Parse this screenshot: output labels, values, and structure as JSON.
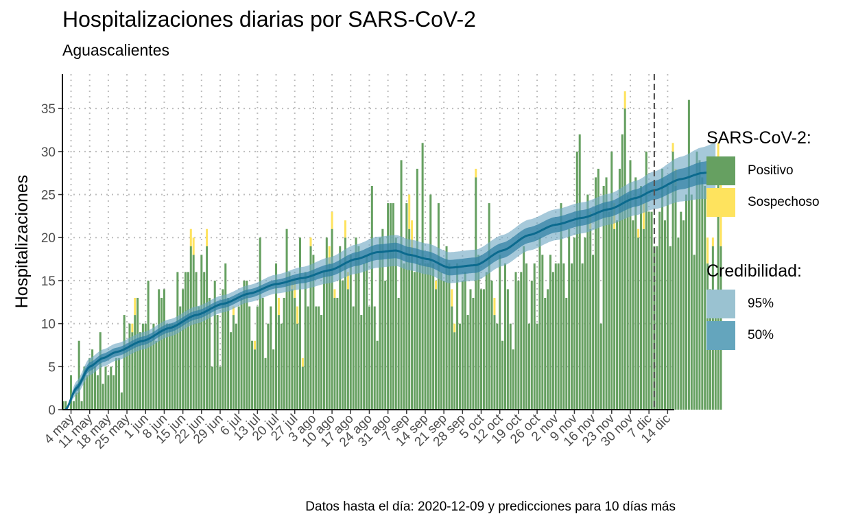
{
  "title": "Hospitalizaciones diarias por SARS-CoV-2",
  "subtitle": "Aguascalientes",
  "caption": "Datos hasta el día: 2020-12-09 y predicciones para 10 días más",
  "legend_sars": {
    "title": "SARS-CoV-2:",
    "items": [
      {
        "label": "Positivo",
        "color": "#66A061"
      },
      {
        "label": "Sospechoso",
        "color": "#FEE35E"
      }
    ]
  },
  "legend_cred": {
    "title": "Credibilidad:",
    "items": [
      {
        "label": "95%",
        "color": "#9AC2D1"
      },
      {
        "label": "50%",
        "color": "#64A5BD"
      }
    ]
  },
  "chart_data": {
    "type": "bar",
    "ylabel": "Hospitalizaciones",
    "xlabel": "",
    "x_start": "2020-05-01",
    "ylim": [
      0,
      39
    ],
    "y_ticks": [
      0,
      5,
      10,
      15,
      20,
      25,
      30,
      35
    ],
    "x_tick_labels": [
      "4 may",
      "11 may",
      "18 may",
      "25 may",
      "1 jun",
      "8 jun",
      "15 jun",
      "22 jun",
      "29 jun",
      "6 jul",
      "13 jul",
      "20 jul",
      "27 jul",
      "3 ago",
      "10 ago",
      "17 ago",
      "24 ago",
      "31 ago",
      "7 sep",
      "14 sep",
      "21 sep",
      "28 sep",
      "5 oct",
      "12 oct",
      "19 oct",
      "26 oct",
      "2 nov",
      "9 nov",
      "16 nov",
      "23 nov",
      "30 nov",
      "7 dic",
      "14 dic"
    ],
    "cutoff_date": "2020-12-09",
    "grid": true,
    "series": [
      {
        "name": "Positivo",
        "color": "#66A061",
        "values": [
          1,
          1,
          0,
          4,
          1,
          2,
          8,
          1,
          5,
          4,
          6,
          7,
          5,
          4,
          9,
          3,
          5,
          4,
          5,
          4,
          6,
          6,
          2,
          11,
          7,
          10,
          9,
          11,
          13,
          9,
          10,
          10,
          15,
          8,
          10,
          8,
          14,
          13,
          14,
          10,
          10,
          10,
          10,
          16,
          12,
          14,
          16,
          16,
          19,
          18,
          16,
          12,
          18,
          16,
          19,
          13,
          5,
          15,
          11,
          5,
          14,
          17,
          13,
          9,
          11,
          10,
          12,
          13,
          15,
          15,
          12,
          8,
          7,
          12,
          20,
          13,
          6,
          10,
          12,
          7,
          17,
          11,
          10,
          13,
          21,
          16,
          14,
          13,
          10,
          20,
          5,
          16,
          12,
          19,
          18,
          12,
          12,
          11,
          16,
          20,
          17,
          21,
          13,
          13,
          19,
          15,
          20,
          14,
          18,
          12,
          20,
          19,
          11,
          17,
          18,
          12,
          26,
          12,
          8,
          20,
          21,
          15,
          24,
          24,
          24,
          20,
          13,
          29,
          17,
          24,
          21,
          18,
          16,
          28,
          17,
          31,
          17,
          17,
          25,
          17,
          14,
          24,
          16,
          15,
          19,
          17,
          12,
          9,
          17,
          10,
          15,
          16,
          11,
          14,
          13,
          27,
          18,
          14,
          14,
          16,
          24,
          15,
          11,
          10,
          18,
          8,
          17,
          14,
          10,
          7,
          16,
          15,
          16,
          19,
          17,
          10,
          15,
          17,
          10,
          20,
          18,
          13,
          14,
          18,
          16,
          17,
          17,
          24,
          17,
          13,
          21,
          17,
          20,
          30,
          32,
          17,
          20,
          25,
          21,
          18,
          27,
          28,
          10,
          26,
          27,
          23,
          30,
          21,
          22,
          28,
          32,
          35,
          25,
          29,
          22,
          27,
          20,
          26,
          21,
          30,
          23,
          23,
          19,
          19,
          23,
          28,
          22,
          26,
          19,
          30,
          26,
          20,
          23,
          22,
          25,
          36,
          25,
          18,
          30,
          29,
          27,
          26,
          17,
          14,
          19,
          13,
          28,
          19
        ]
      },
      {
        "name": "Sospechoso",
        "color": "#FEE35E",
        "values": [
          0,
          0,
          0,
          0,
          0,
          0,
          0,
          0,
          0,
          0,
          0,
          0,
          0,
          0,
          0,
          0,
          0,
          0,
          0,
          0,
          0,
          0,
          0,
          0,
          0,
          0,
          1,
          2,
          0,
          0,
          0,
          0,
          0,
          0,
          0,
          0,
          0,
          0,
          0,
          0,
          0,
          0,
          0,
          0,
          0,
          0,
          0,
          0,
          2,
          2,
          0,
          0,
          0,
          0,
          2,
          0,
          0,
          0,
          0,
          0,
          0,
          0,
          0,
          0,
          1,
          0,
          0,
          0,
          0,
          0,
          0,
          0,
          1,
          0,
          0,
          0,
          0,
          0,
          0,
          0,
          0,
          2,
          0,
          0,
          0,
          0,
          1,
          2,
          2,
          0,
          1,
          0,
          0,
          1,
          0,
          0,
          0,
          0,
          0,
          0,
          2,
          2,
          1,
          0,
          0,
          0,
          2,
          2,
          0,
          0,
          0,
          0,
          0,
          0,
          0,
          0,
          0,
          0,
          0,
          0,
          0,
          0,
          0,
          0,
          0,
          0,
          0,
          0,
          0,
          0,
          4,
          4,
          0,
          0,
          0,
          0,
          0,
          0,
          0,
          0,
          1,
          0,
          0,
          0,
          0,
          0,
          2,
          1,
          0,
          0,
          0,
          0,
          0,
          0,
          0,
          1,
          0,
          0,
          0,
          0,
          0,
          0,
          2,
          0,
          0,
          0,
          0,
          0,
          0,
          0,
          0,
          0,
          0,
          0,
          0,
          0,
          0,
          0,
          0,
          0,
          0,
          0,
          0,
          0,
          0,
          0,
          0,
          0,
          0,
          0,
          0,
          0,
          0,
          0,
          0,
          0,
          0,
          0,
          2,
          0,
          0,
          0,
          0,
          0,
          0,
          0,
          0,
          3,
          0,
          0,
          0,
          2,
          0,
          0,
          0,
          0,
          1,
          0,
          3,
          0,
          0,
          0,
          0,
          0,
          0,
          0,
          0,
          0,
          0,
          1,
          2,
          0,
          0,
          0,
          0,
          0,
          0,
          0,
          0,
          0,
          0,
          0,
          3,
          0,
          1,
          0,
          3,
          10,
          10,
          3,
          8,
          3
        ]
      }
    ],
    "trend": {
      "anchor_days": [
        1,
        5,
        10,
        15,
        20,
        30,
        40,
        50,
        60,
        70,
        80,
        90,
        100,
        110,
        118,
        125,
        130,
        137,
        145,
        155,
        165,
        175,
        185,
        195,
        205,
        215,
        222,
        232,
        240,
        245
      ],
      "median": [
        0,
        2.5,
        5.0,
        6.0,
        6.7,
        8.0,
        9.5,
        11.0,
        12.3,
        13.5,
        14.6,
        15.3,
        16.2,
        17.5,
        18.3,
        18.5,
        18.0,
        17.5,
        16.5,
        16.8,
        18.5,
        20.3,
        21.5,
        22.3,
        23.3,
        24.6,
        25.5,
        26.8,
        27.5,
        27.7
      ],
      "ci50_halfwidth": [
        0,
        0.4,
        0.5,
        0.5,
        0.5,
        0.5,
        0.5,
        0.5,
        0.5,
        0.5,
        0.5,
        0.6,
        0.7,
        0.8,
        0.9,
        0.9,
        0.9,
        0.9,
        0.9,
        0.9,
        0.9,
        0.9,
        0.9,
        0.9,
        0.9,
        1.0,
        1.1,
        1.2,
        1.3,
        1.4
      ],
      "ci95_halfwidth": [
        0,
        0.8,
        1.0,
        1.0,
        1.0,
        1.0,
        1.0,
        1.0,
        1.0,
        1.0,
        1.1,
        1.3,
        1.5,
        1.7,
        1.8,
        1.8,
        1.8,
        1.8,
        1.8,
        1.8,
        1.8,
        1.8,
        1.8,
        1.8,
        1.8,
        2.0,
        2.2,
        2.6,
        3.0,
        3.3
      ]
    }
  }
}
